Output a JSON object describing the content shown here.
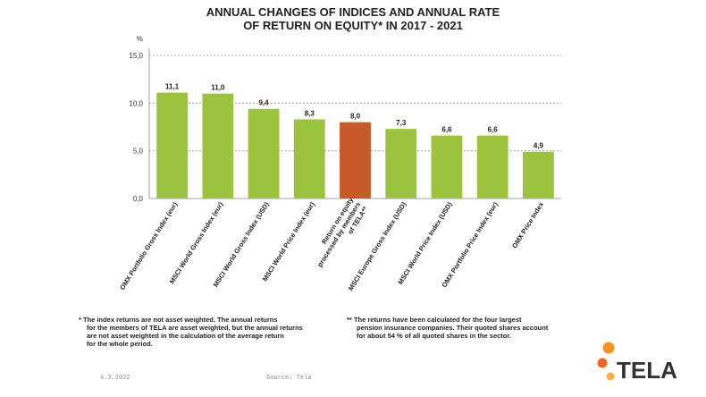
{
  "chart_data": {
    "type": "bar",
    "title": [
      "ANNUAL CHANGES OF INDICES AND ANNUAL RATE",
      "OF RETURN ON EQUITY* IN 2017 - 2021"
    ],
    "ylabel": "%",
    "ylim": [
      0,
      15
    ],
    "yticks": [
      "0,0",
      "5,0",
      "10,0",
      "15,0"
    ],
    "grid": true,
    "categories": [
      [
        "OMX Portfolio Gross Index (eur)"
      ],
      [
        "MSCI World Gross Index (eur)"
      ],
      [
        "MSCI World Gross Index (USD)"
      ],
      [
        "MSCI World Price Index (eur)"
      ],
      [
        "Return on equity",
        "processed by members",
        "of TELA**"
      ],
      [
        "MSCI Europe Gross Index (USD)"
      ],
      [
        "MSCI World Price Index (USD)"
      ],
      [
        "OMX Portfolio Price Index (eur)"
      ],
      [
        "OMX  Price Index"
      ]
    ],
    "values": [
      11.1,
      11.0,
      9.4,
      8.3,
      8.0,
      7.3,
      6.6,
      6.6,
      4.9
    ],
    "value_labels": [
      "11,1",
      "11,0",
      "9,4",
      "8,3",
      "8,0",
      "7,3",
      "6,6",
      "6,6",
      "4,9"
    ],
    "colors": [
      "#9bc33d",
      "#9bc33d",
      "#9bc33d",
      "#9bc33d",
      "#c65a2b",
      "#9bc33d",
      "#9bc33d",
      "#9bc33d",
      "#9bc33d"
    ]
  },
  "footnotes": {
    "left_marker": "*",
    "left": [
      "The index returns are not asset weighted. The annual returns",
      "for the members of TELA are asset weighted, but the annual returns",
      "are not asset weighted in the calculation of the average return",
      "for the whole period."
    ],
    "right_marker": "**",
    "right": [
      "The returns have been calculated for the four largest",
      "pension insurance companies. Their quoted shares account",
      "for about 54 % of all quoted shares in the sector."
    ]
  },
  "meta": {
    "date": "4.3.2022",
    "source": "Source:  Tela"
  },
  "logo": {
    "text": "TELA",
    "dot_colors": [
      "#f7941d",
      "#f26522",
      "#fbb040"
    ]
  }
}
